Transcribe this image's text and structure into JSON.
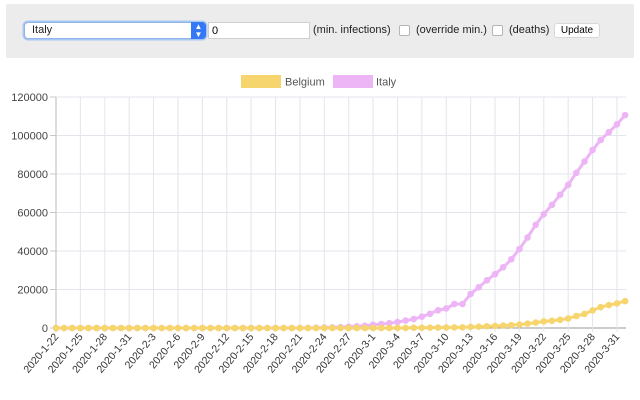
{
  "toolbar": {
    "country_select": {
      "selected": "Italy"
    },
    "min_infections_input": {
      "value": "0"
    },
    "min_infections_label": "(min. infections)",
    "override_min_label": "(override min.)",
    "override_min_checked": false,
    "deaths_label": "(deaths)",
    "deaths_checked": false,
    "update_button": "Update"
  },
  "legend": [
    {
      "label": "Belgium",
      "color": "#f7d56e"
    },
    {
      "label": "Italy",
      "color": "#edb5f5"
    }
  ],
  "chart_data": {
    "type": "line",
    "title": "",
    "xlabel": "",
    "ylabel": "",
    "ylim": [
      0,
      120000
    ],
    "y_ticks": [
      0,
      20000,
      40000,
      60000,
      80000,
      100000,
      120000
    ],
    "x_tick_labels": [
      "2020-1-22",
      "2020-1-25",
      "2020-1-28",
      "2020-1-31",
      "2020-2-3",
      "2020-2-6",
      "2020-2-9",
      "2020-2-12",
      "2020-2-15",
      "2020-2-18",
      "2020-2-21",
      "2020-2-24",
      "2020-2-27",
      "2020-3-1",
      "2020-3-4",
      "2020-3-7",
      "2020-3-10",
      "2020-3-13",
      "2020-3-16",
      "2020-3-19",
      "2020-3-22",
      "2020-3-25",
      "2020-3-28",
      "2020-3-31"
    ],
    "grid": true,
    "legend_position": "top",
    "x": [
      "2020-1-22",
      "2020-1-23",
      "2020-1-24",
      "2020-1-25",
      "2020-1-26",
      "2020-1-27",
      "2020-1-28",
      "2020-1-29",
      "2020-1-30",
      "2020-1-31",
      "2020-2-1",
      "2020-2-2",
      "2020-2-3",
      "2020-2-4",
      "2020-2-5",
      "2020-2-6",
      "2020-2-7",
      "2020-2-8",
      "2020-2-9",
      "2020-2-10",
      "2020-2-11",
      "2020-2-12",
      "2020-2-13",
      "2020-2-14",
      "2020-2-15",
      "2020-2-16",
      "2020-2-17",
      "2020-2-18",
      "2020-2-19",
      "2020-2-20",
      "2020-2-21",
      "2020-2-22",
      "2020-2-23",
      "2020-2-24",
      "2020-2-25",
      "2020-2-26",
      "2020-2-27",
      "2020-2-28",
      "2020-2-29",
      "2020-3-1",
      "2020-3-2",
      "2020-3-3",
      "2020-3-4",
      "2020-3-5",
      "2020-3-6",
      "2020-3-7",
      "2020-3-8",
      "2020-3-9",
      "2020-3-10",
      "2020-3-11",
      "2020-3-12",
      "2020-3-13",
      "2020-3-14",
      "2020-3-15",
      "2020-3-16",
      "2020-3-17",
      "2020-3-18",
      "2020-3-19",
      "2020-3-20",
      "2020-3-21",
      "2020-3-22",
      "2020-3-23",
      "2020-3-24",
      "2020-3-25",
      "2020-3-26",
      "2020-3-27",
      "2020-3-28",
      "2020-3-29",
      "2020-3-30",
      "2020-3-31",
      "2020-4-1"
    ],
    "series": [
      {
        "name": "Belgium",
        "color": "#f7d56e",
        "values": [
          0,
          0,
          0,
          0,
          0,
          0,
          0,
          0,
          0,
          0,
          0,
          0,
          0,
          0,
          0,
          1,
          1,
          1,
          1,
          1,
          1,
          1,
          1,
          1,
          1,
          1,
          1,
          1,
          1,
          1,
          1,
          1,
          1,
          1,
          1,
          1,
          1,
          1,
          1,
          2,
          8,
          13,
          23,
          50,
          109,
          169,
          200,
          239,
          267,
          314,
          314,
          559,
          689,
          886,
          1058,
          1243,
          1486,
          1795,
          2257,
          2815,
          3401,
          3743,
          4269,
          4937,
          6235,
          7284,
          9134,
          10836,
          11899,
          12775,
          13964
        ]
      },
      {
        "name": "Italy",
        "color": "#edb5f5",
        "values": [
          0,
          0,
          0,
          0,
          0,
          0,
          0,
          0,
          0,
          2,
          2,
          2,
          2,
          2,
          2,
          2,
          3,
          3,
          3,
          3,
          3,
          3,
          3,
          3,
          3,
          3,
          3,
          3,
          3,
          3,
          20,
          62,
          155,
          229,
          322,
          453,
          655,
          888,
          1128,
          1694,
          2036,
          2502,
          3089,
          3858,
          4636,
          5883,
          7375,
          9172,
          10149,
          12462,
          12462,
          17660,
          21157,
          24747,
          27980,
          31506,
          35713,
          41035,
          47021,
          53578,
          59138,
          63927,
          69176,
          74386,
          80589,
          86498,
          92472,
          97689,
          101739,
          105792,
          110574
        ]
      }
    ]
  }
}
